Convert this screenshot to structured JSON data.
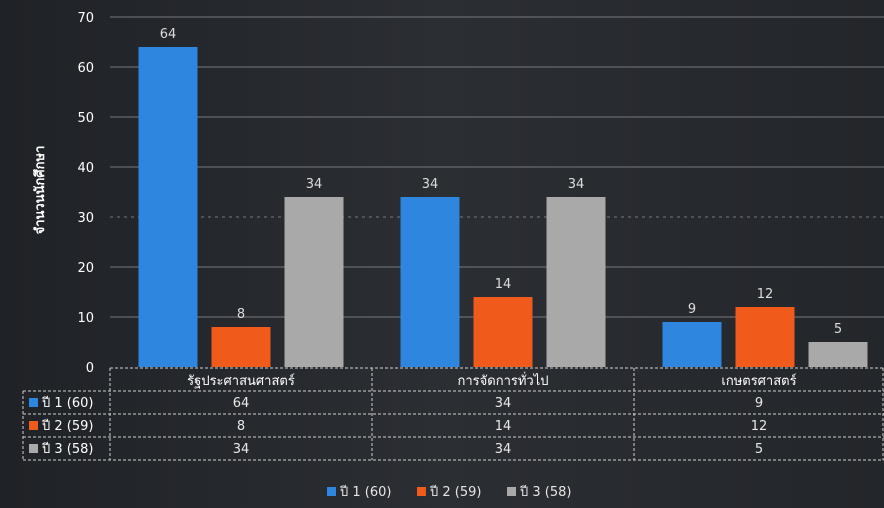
{
  "chart_data": {
    "type": "bar",
    "title": "",
    "xlabel": "",
    "ylabel": "จำนวนนักศึกษา",
    "ylim": [
      0,
      70
    ],
    "yticks": [
      0,
      10,
      20,
      30,
      40,
      50,
      60,
      70
    ],
    "categories": [
      "รัฐประศาสนศาสตร์",
      "การจัดการทั่วไป",
      "เกษตรศาสตร์"
    ],
    "series": [
      {
        "name": "ปี 1 (60)",
        "color": "#2e86de",
        "values": [
          64,
          34,
          9
        ]
      },
      {
        "name": "ปี 2 (59)",
        "color": "#f05a1a",
        "values": [
          8,
          14,
          12
        ]
      },
      {
        "name": "ปี 3 (58)",
        "color": "#a9a9a9",
        "values": [
          34,
          34,
          5
        ]
      }
    ],
    "grid": true,
    "legend": "bottom",
    "data_table": true
  }
}
